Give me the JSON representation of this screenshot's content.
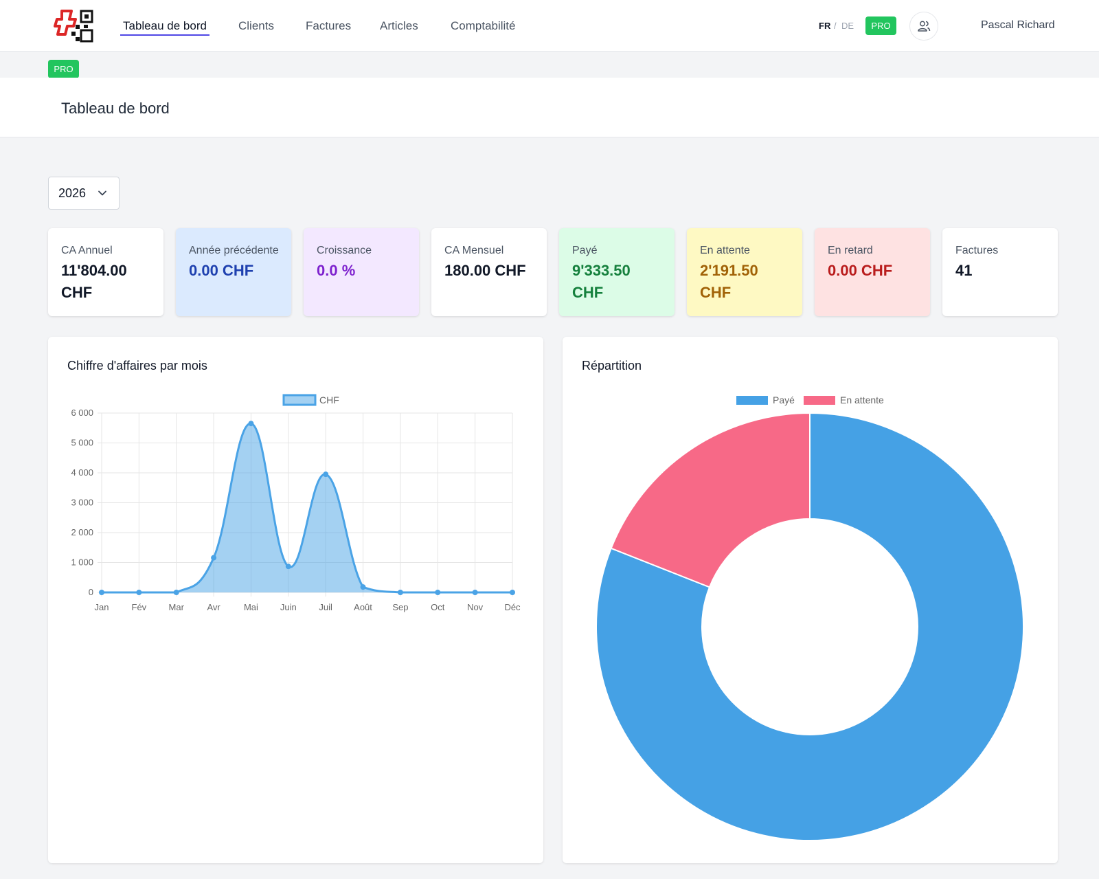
{
  "nav": {
    "items": [
      {
        "label": "Tableau de bord",
        "active": true
      },
      {
        "label": "Clients",
        "active": false
      },
      {
        "label": "Factures",
        "active": false
      },
      {
        "label": "Articles",
        "active": false
      },
      {
        "label": "Comptabilité",
        "active": false
      }
    ],
    "lang_fr": "FR",
    "lang_sep": "/",
    "lang_de": "DE",
    "pro_label": "PRO",
    "user_name": "Pascal Richard"
  },
  "subbar": {
    "pro_label": "PRO"
  },
  "header": {
    "title": "Tableau de bord"
  },
  "year_select": {
    "value": "2026"
  },
  "kpis": [
    {
      "label": "CA Annuel",
      "value": "11'804.00 CHF",
      "bg": "#ffffff",
      "color": "#111827"
    },
    {
      "label": "Année précédente",
      "value": "0.00 CHF",
      "bg": "#dbeafe",
      "color": "#1e40af"
    },
    {
      "label": "Croissance",
      "value": "0.0 %",
      "bg": "#f3e8ff",
      "color": "#7e22ce"
    },
    {
      "label": "CA Mensuel",
      "value": "180.00 CHF",
      "bg": "#ffffff",
      "color": "#111827"
    },
    {
      "label": "Payé",
      "value": "9'333.50 CHF",
      "bg": "#dcfce7",
      "color": "#15803d"
    },
    {
      "label": "En attente",
      "value": "2'191.50 CHF",
      "bg": "#fef9c3",
      "color": "#a16207"
    },
    {
      "label": "En retard",
      "value": "0.00 CHF",
      "bg": "#fee2e2",
      "color": "#b91c1c"
    },
    {
      "label": "Factures",
      "value": "41",
      "bg": "#ffffff",
      "color": "#111827"
    }
  ],
  "monthly_chart": {
    "title": "Chiffre d'affaires par mois"
  },
  "split_chart": {
    "title": "Répartition"
  },
  "chart_data": [
    {
      "type": "area",
      "title": "Chiffre d'affaires par mois",
      "categories": [
        "Jan",
        "Fév",
        "Mar",
        "Avr",
        "Mai",
        "Juin",
        "Juil",
        "Août",
        "Sep",
        "Oct",
        "Nov",
        "Déc"
      ],
      "series": [
        {
          "name": "CHF",
          "values": [
            0,
            0,
            0,
            1160,
            5650,
            870,
            3950,
            180,
            0,
            0,
            0,
            0
          ],
          "color": "#4aa3e6"
        }
      ],
      "yticks": [
        "6 000",
        "5 000",
        "4 000",
        "3 000",
        "2 000",
        "1 000",
        "0"
      ],
      "ylim": [
        0,
        6000
      ],
      "grid": true,
      "legend": "top-center"
    },
    {
      "type": "pie",
      "title": "Répartition",
      "labels": [
        "Payé",
        "En attente"
      ],
      "values": [
        9333.5,
        2191.5
      ],
      "colors": [
        "#45a1e5",
        "#f76987"
      ],
      "donut": true,
      "legend": "top-center"
    }
  ]
}
